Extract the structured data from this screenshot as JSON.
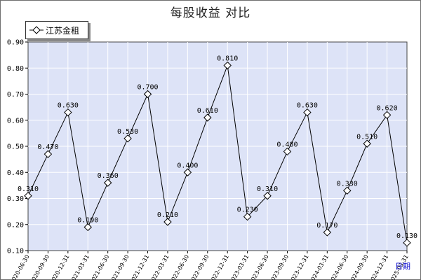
{
  "title": "每股收益 对比",
  "legend": {
    "label": "江苏金租"
  },
  "x_unit": "日期",
  "chart_data": {
    "type": "line",
    "title": "每股收益 对比",
    "xlabel": "日期",
    "ylabel": "",
    "ylim": [
      0.1,
      0.9
    ],
    "yticks": [
      "0.10",
      "0.20",
      "0.30",
      "0.40",
      "0.50",
      "0.60",
      "0.70",
      "0.80",
      "0.90"
    ],
    "grid": true,
    "legend_position": "top-left",
    "categories": [
      "2020-06-30",
      "2020-09-30",
      "2020-12-31",
      "2021-03-31",
      "2021-06-30",
      "2021-09-30",
      "2021-12-31",
      "2022-03-31",
      "2022-06-30",
      "2022-09-30",
      "2022-12-31",
      "2023-03-31",
      "2023-06-30",
      "2023-09-30",
      "2023-12-31",
      "2024-03-31",
      "2024-06-30",
      "2024-09-30",
      "2024-12-31",
      "2025-03-31"
    ],
    "series": [
      {
        "name": "江苏金租",
        "values": [
          0.31,
          0.47,
          0.63,
          0.19,
          0.36,
          0.53,
          0.7,
          0.21,
          0.4,
          0.61,
          0.81,
          0.23,
          0.31,
          0.48,
          0.63,
          0.17,
          0.33,
          0.51,
          0.62,
          0.13
        ],
        "labels": [
          "0.310",
          "0.470",
          "0.630",
          "0.190",
          "0.360",
          "0.530",
          "0.700",
          "0.210",
          "0.400",
          "0.610",
          "0.810",
          "0.230",
          "0.310",
          "0.480",
          "0.630",
          "0.170",
          "0.330",
          "0.510",
          "0.620",
          "0.130"
        ]
      }
    ],
    "colors": {
      "plot_bg": "#dde3f7",
      "grid": "#ffffff",
      "line": "#000000",
      "unit_label": "#0000cc"
    }
  }
}
